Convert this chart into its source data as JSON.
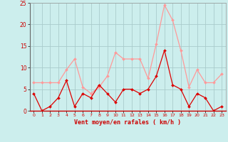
{
  "hours": [
    0,
    1,
    2,
    3,
    4,
    5,
    6,
    7,
    8,
    9,
    10,
    11,
    12,
    13,
    14,
    15,
    16,
    17,
    18,
    19,
    20,
    21,
    22,
    23
  ],
  "wind_avg": [
    4,
    0,
    1,
    3,
    7,
    1,
    4,
    3,
    6,
    4,
    2,
    5,
    5,
    4,
    5,
    8,
    14,
    6,
    5,
    1,
    4,
    3,
    0,
    1
  ],
  "wind_gust": [
    6.5,
    6.5,
    6.5,
    6.5,
    9.5,
    12,
    5.5,
    4,
    5.5,
    8,
    13.5,
    12,
    12,
    12,
    7.5,
    15.5,
    24.5,
    21,
    14,
    5.5,
    9.5,
    6.5,
    6.5,
    8.5
  ],
  "avg_color": "#dd0000",
  "gust_color": "#ff9999",
  "bg_color": "#cceeed",
  "grid_color": "#aacccc",
  "xlabel": "Vent moyen/en rafales ( km/h )",
  "xlabel_color": "#cc0000",
  "tick_color": "#cc0000",
  "ylim": [
    0,
    25
  ],
  "yticks": [
    0,
    5,
    10,
    15,
    20,
    25
  ]
}
